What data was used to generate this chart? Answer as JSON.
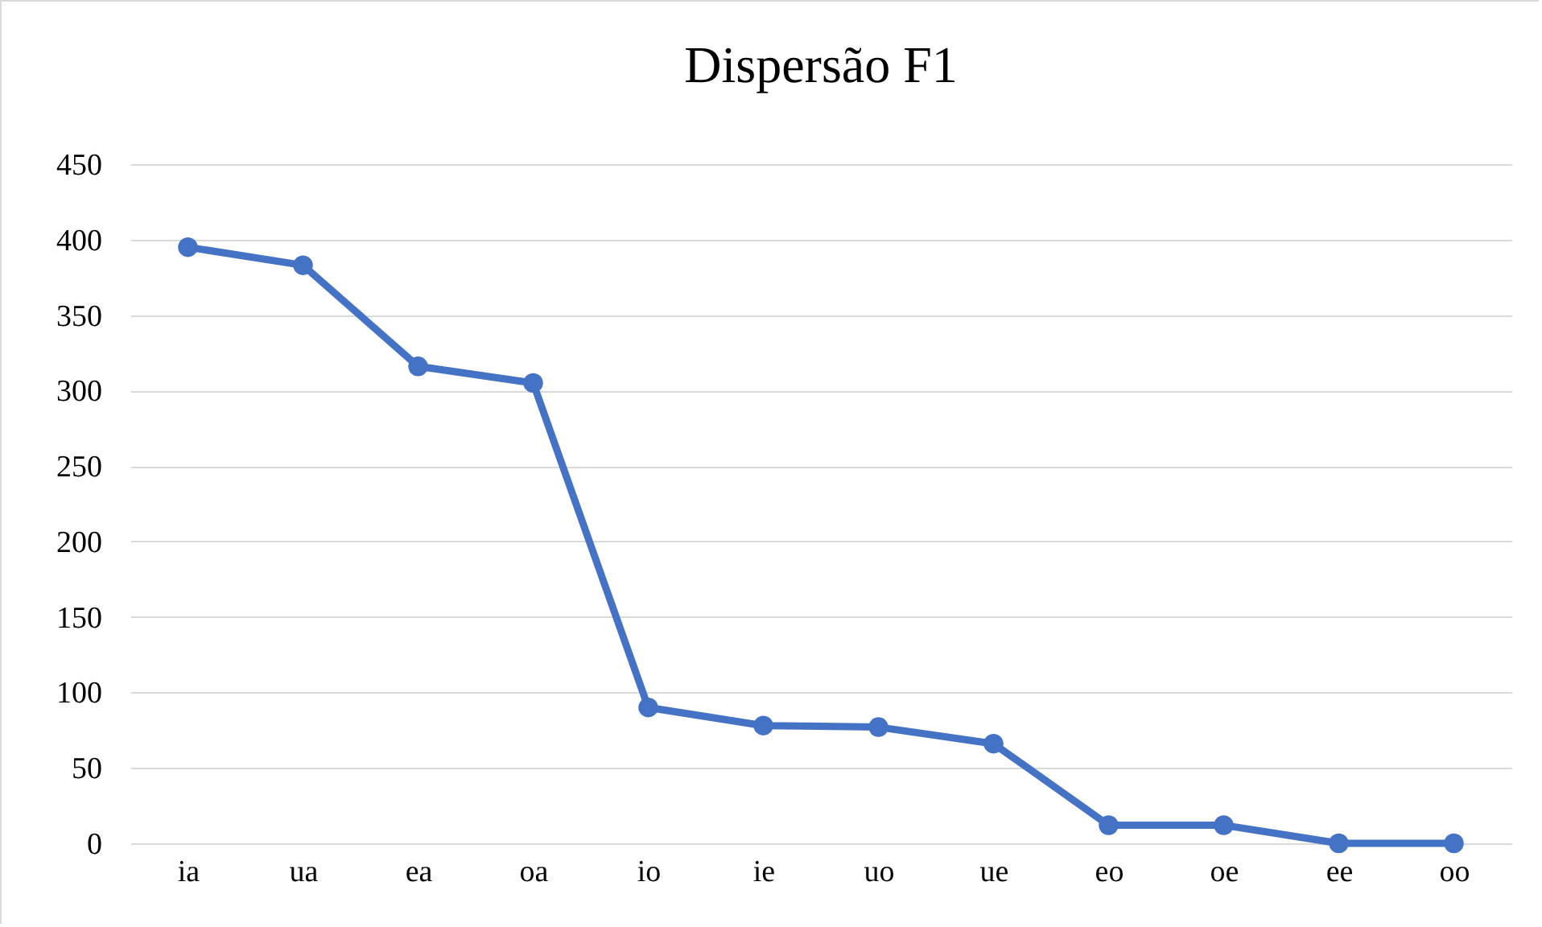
{
  "chart_data": {
    "type": "line",
    "title": "Dispersão F1",
    "categories": [
      "ia",
      "ua",
      "ea",
      "oa",
      "io",
      "ie",
      "uo",
      "ue",
      "eo",
      "oe",
      "ee",
      "oo"
    ],
    "series": [
      {
        "color": "#4472c4",
        "values": [
          395,
          383,
          316,
          305,
          90,
          78,
          77,
          66,
          12,
          12,
          0,
          0
        ]
      }
    ],
    "ylim": [
      0,
      450
    ],
    "yticks": [
      0,
      50,
      100,
      150,
      200,
      250,
      300,
      350,
      400,
      450
    ],
    "grid": "y",
    "legend": false,
    "marker": "circle",
    "line_style": "solid"
  }
}
